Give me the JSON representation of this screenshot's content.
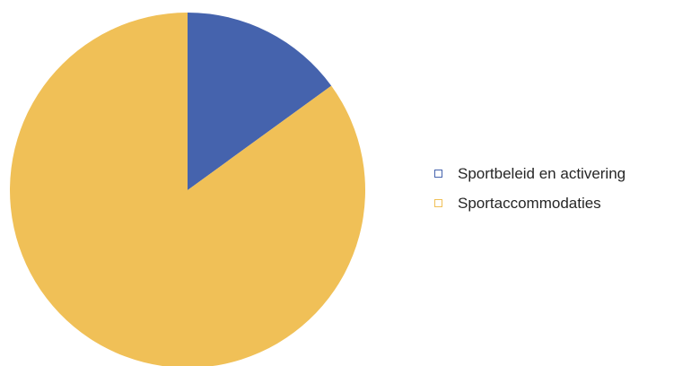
{
  "chart_data": {
    "type": "pie",
    "title": "",
    "slices": [
      {
        "label": "Sportbeleid en activering",
        "value": 15,
        "color": "#4563ad"
      },
      {
        "label": "Sportaccommodaties",
        "value": 85,
        "color": "#f0c057"
      }
    ],
    "start_angle_deg": 0,
    "direction": "clockwise",
    "legend_position": "right"
  }
}
